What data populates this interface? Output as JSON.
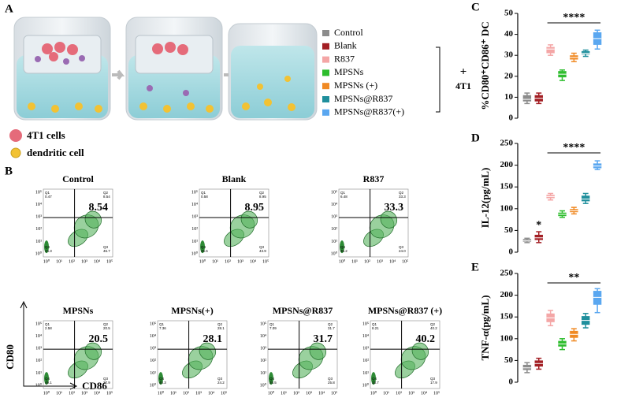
{
  "figure": {
    "panel_labels": [
      "A",
      "B",
      "C",
      "D",
      "E"
    ],
    "cell_labels": [
      "4T1 cells",
      "dendritic cell"
    ],
    "legend": [
      {
        "name": "Control",
        "color": "#8c8c8c"
      },
      {
        "name": "Blank",
        "color": "#a31f24"
      },
      {
        "name": "R837",
        "color": "#f4a6a6"
      },
      {
        "name": "MPSNs",
        "color": "#2dbd2d"
      },
      {
        "name": "MPSNs  (+)",
        "color": "#f08a24"
      },
      {
        "name": "MPSNs@R837",
        "color": "#1f8f9c"
      },
      {
        "name": "MPSNs@R837(+)",
        "color": "#5aa7f0"
      }
    ],
    "bracket_text": [
      "+",
      "4T1"
    ],
    "flow": {
      "x_label": "CD86",
      "y_label": "CD80",
      "tick_labels": [
        "10⁰",
        "10¹",
        "10²",
        "10³",
        "10⁴",
        "10⁵"
      ],
      "quadrant_names": [
        "Q1",
        "Q2",
        "Q3",
        "Q4"
      ],
      "plots": [
        {
          "title": "Control",
          "quadrants": [
            "0.47",
            "8.54",
            "46.7",
            "44.3"
          ]
        },
        {
          "title": "Blank",
          "quadrants": [
            "0.58",
            "8.95",
            "43.9",
            "46.6"
          ]
        },
        {
          "title": "R837",
          "quadrants": [
            "6.48",
            "33.3",
            "24.0",
            "36.2"
          ]
        },
        {
          "title": "MPSNs",
          "quadrants": [
            "2.58",
            "20.5",
            "27.9",
            "49.1"
          ]
        },
        {
          "title": "MPSNs(+)",
          "quadrants": [
            "7.36",
            "28.1",
            "24.2",
            "40.3"
          ]
        },
        {
          "title": "MPSNs@R837",
          "quadrants": [
            "7.09",
            "31.7",
            "25.8",
            "35.5"
          ]
        },
        {
          "title": "MPSNs@R837  (+)",
          "quadrants": [
            "8.21",
            "40.2",
            "17.9",
            "33.7"
          ]
        }
      ]
    }
  },
  "chart_data": [
    {
      "type": "box",
      "y_label": "%CD80⁺CD86⁺ DC",
      "ylim": [
        0,
        50
      ],
      "yticks": [
        0,
        10,
        20,
        30,
        40,
        50
      ],
      "annotations": [
        "****"
      ],
      "boxes": [
        {
          "min": 7,
          "q1": 8,
          "median": 9,
          "q3": 11,
          "max": 12
        },
        {
          "min": 7,
          "q1": 8,
          "median": 9.5,
          "q3": 11,
          "max": 12
        },
        {
          "min": 30,
          "q1": 31,
          "median": 33,
          "q3": 34,
          "max": 35
        },
        {
          "min": 18,
          "q1": 19.5,
          "median": 21,
          "q3": 22.5,
          "max": 23
        },
        {
          "min": 27,
          "q1": 28,
          "median": 29,
          "q3": 30,
          "max": 31
        },
        {
          "min": 29.5,
          "q1": 30.5,
          "median": 31,
          "q3": 32,
          "max": 32.5
        },
        {
          "min": 33,
          "q1": 35,
          "median": 38,
          "q3": 41,
          "max": 42
        }
      ]
    },
    {
      "type": "box",
      "y_label": "IL-12(pg/mL)",
      "ylim": [
        0,
        250
      ],
      "yticks": [
        0,
        50,
        100,
        150,
        200,
        250
      ],
      "annotations": [
        "*",
        "****"
      ],
      "boxes": [
        {
          "min": 22,
          "q1": 24,
          "median": 26,
          "q3": 30,
          "max": 32
        },
        {
          "min": 22,
          "q1": 28,
          "median": 33,
          "q3": 40,
          "max": 47
        },
        {
          "min": 120,
          "q1": 124,
          "median": 128,
          "q3": 132,
          "max": 135
        },
        {
          "min": 80,
          "q1": 83,
          "median": 87,
          "q3": 91,
          "max": 95
        },
        {
          "min": 88,
          "q1": 92,
          "median": 95,
          "q3": 99,
          "max": 103
        },
        {
          "min": 112,
          "q1": 117,
          "median": 122,
          "q3": 130,
          "max": 135
        },
        {
          "min": 190,
          "q1": 193,
          "median": 198,
          "q3": 204,
          "max": 210
        }
      ]
    },
    {
      "type": "box",
      "y_label": "TNF-α(pg/mL)",
      "ylim": [
        0,
        250
      ],
      "yticks": [
        0,
        50,
        100,
        150,
        200,
        250
      ],
      "annotations": [
        "**"
      ],
      "boxes": [
        {
          "min": 22,
          "q1": 28,
          "median": 33,
          "q3": 40,
          "max": 45
        },
        {
          "min": 30,
          "q1": 36,
          "median": 43,
          "q3": 50,
          "max": 55
        },
        {
          "min": 130,
          "q1": 138,
          "median": 148,
          "q3": 158,
          "max": 165
        },
        {
          "min": 75,
          "q1": 82,
          "median": 88,
          "q3": 95,
          "max": 100
        },
        {
          "min": 95,
          "q1": 102,
          "median": 110,
          "q3": 118,
          "max": 123
        },
        {
          "min": 125,
          "q1": 132,
          "median": 142,
          "q3": 152,
          "max": 158
        },
        {
          "min": 160,
          "q1": 178,
          "median": 195,
          "q3": 210,
          "max": 215
        }
      ]
    }
  ]
}
